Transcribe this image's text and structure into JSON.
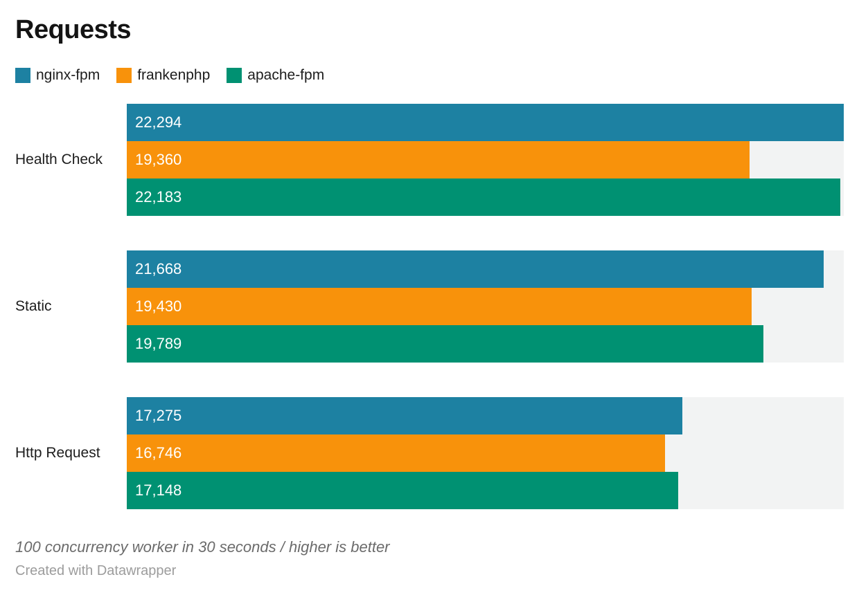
{
  "chart_data": {
    "type": "bar",
    "orientation": "horizontal",
    "title": "Requests",
    "categories": [
      "Health Check",
      "Static",
      "Http Request"
    ],
    "series": [
      {
        "name": "nginx-fpm",
        "color": "#1d81a2",
        "values": [
          22294,
          21668,
          17275
        ]
      },
      {
        "name": "frankenphp",
        "color": "#f8920b",
        "values": [
          19360,
          19430,
          16746
        ]
      },
      {
        "name": "apache-fpm",
        "color": "#009172",
        "values": [
          22183,
          19789,
          17148
        ]
      }
    ],
    "value_labels": [
      [
        "22,294",
        "19,360",
        "22,183"
      ],
      [
        "21,668",
        "19,430",
        "19,789"
      ],
      [
        "17,275",
        "16,746",
        "17,148"
      ]
    ],
    "xlim": [
      0,
      22294
    ],
    "xmax": 22294,
    "grid": false,
    "legend_position": "top",
    "track_color": "#f2f3f3",
    "footnote": "100 concurrency worker in 30 seconds / higher is better",
    "attribution": "Created with Datawrapper"
  }
}
